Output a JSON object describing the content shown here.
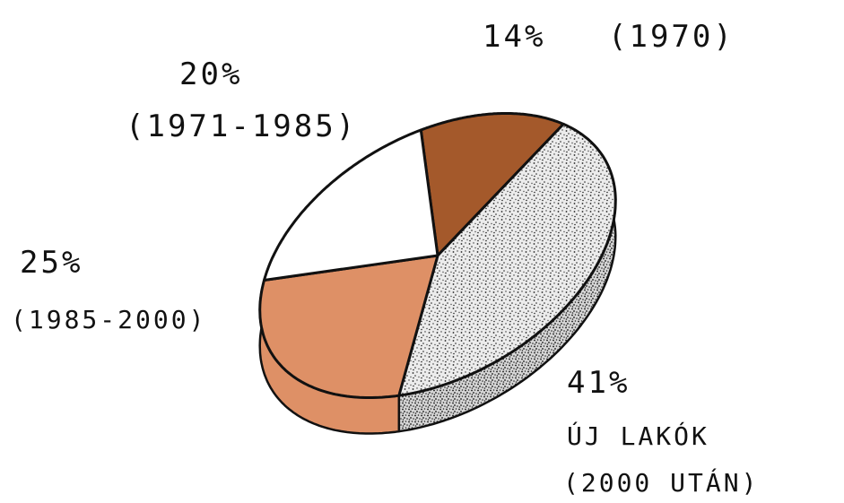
{
  "chart_data": {
    "type": "pie",
    "style": "hand-drawn 3D pie",
    "slices": [
      {
        "label_value": "14%",
        "label_period": "(1970)",
        "value": 14,
        "color": "#a4592b"
      },
      {
        "label_value": "41%",
        "label_period": "ÚJ LAKÓK",
        "label_period2": "(2000 UTÁN)",
        "value": 41,
        "color": "#d9d9d9",
        "pattern": "stipple"
      },
      {
        "label_value": "25%",
        "label_period": "(1985-2000)",
        "value": 25,
        "color": "#de9066"
      },
      {
        "label_value": "20%",
        "label_period": "(1971-1985)",
        "value": 20,
        "color": "#ffffff"
      }
    ]
  }
}
